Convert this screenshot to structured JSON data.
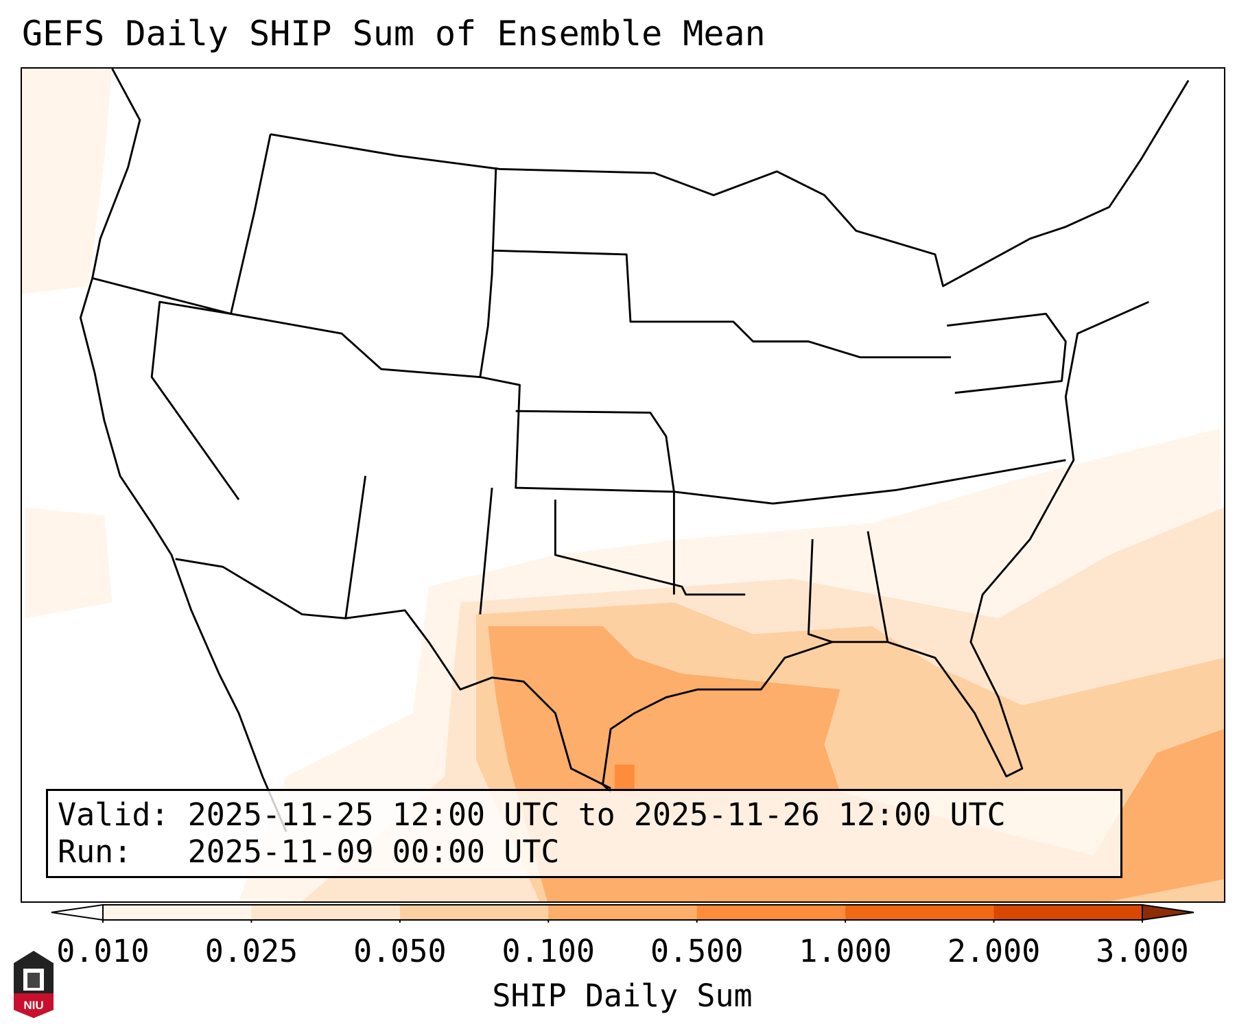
{
  "title": "GEFS Daily SHIP Sum of Ensemble Mean",
  "legend": {
    "valid_label": "Valid:",
    "valid_value": "2025-11-25 12:00 UTC to 2025-11-26 12:00 UTC",
    "run_label": "Run:",
    "run_value": "2025-11-09 00:00 UTC"
  },
  "colorbar": {
    "label": "SHIP Daily Sum",
    "ticks": [
      "0.010",
      "0.025",
      "0.050",
      "0.100",
      "0.500",
      "1.000",
      "2.000",
      "3.000"
    ],
    "colors": [
      "#fff5eb",
      "#fee6ce",
      "#fdd0a2",
      "#fdae6b",
      "#fd8d3c",
      "#f16913",
      "#d94801"
    ],
    "under_color": "#ffffff",
    "over_color": "#8c2d04"
  },
  "logo": {
    "text": "NIU"
  }
}
